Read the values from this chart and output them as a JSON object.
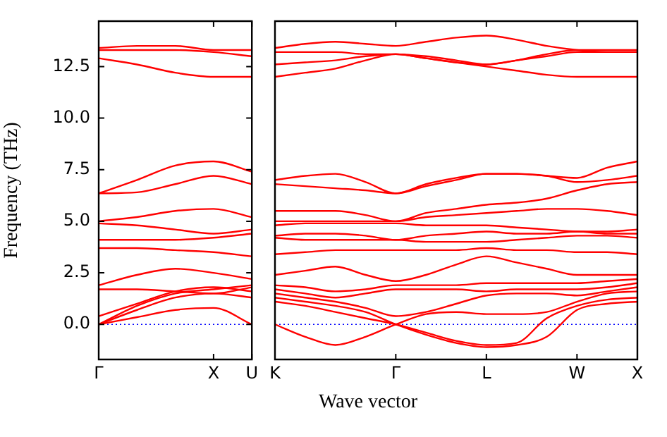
{
  "chart_data": [
    {
      "type": "line",
      "ylabel": "Frequency (THz)",
      "ylim": [
        -1.7,
        14.7
      ],
      "categories": [
        "Γ",
        null,
        null,
        "X",
        "U"
      ],
      "yticks": [
        {
          "value": 0,
          "label": "0.0"
        },
        {
          "value": 2.5,
          "label": "2.5"
        },
        {
          "value": 5,
          "label": "5.0"
        },
        {
          "value": 7.5,
          "label": "7.5"
        },
        {
          "value": 10,
          "label": "10.0"
        },
        {
          "value": 12.5,
          "label": "12.5"
        }
      ],
      "grid": false,
      "legend": false,
      "marker": "none",
      "line_style": "solid",
      "ref_lines": [
        {
          "axis": "y",
          "value": 0,
          "color": "#0000ff",
          "line_style": "dotted"
        }
      ],
      "series": [
        {
          "color": "#ff0000",
          "values": [
            0,
            0.35,
            0.7,
            0.8,
            0
          ]
        },
        {
          "color": "#ff0000",
          "values": [
            0,
            0.7,
            1.3,
            1.5,
            1.3
          ]
        },
        {
          "color": "#ff0000",
          "values": [
            0,
            0.9,
            1.5,
            1.7,
            1.9
          ]
        },
        {
          "color": "#ff0000",
          "values": [
            0.4,
            1.0,
            1.6,
            1.8,
            1.6
          ]
        },
        {
          "color": "#ff0000",
          "values": [
            1.7,
            1.7,
            1.6,
            1.5,
            1.8
          ]
        },
        {
          "color": "#ff0000",
          "values": [
            1.9,
            2.4,
            2.7,
            2.5,
            2.2
          ]
        },
        {
          "color": "#ff0000",
          "values": [
            3.7,
            3.7,
            3.6,
            3.5,
            3.3
          ]
        },
        {
          "color": "#ff0000",
          "values": [
            4.1,
            4.1,
            4.1,
            4.2,
            4.4
          ]
        },
        {
          "color": "#ff0000",
          "values": [
            4.9,
            4.8,
            4.6,
            4.4,
            4.6
          ]
        },
        {
          "color": "#ff0000",
          "values": [
            5.0,
            5.2,
            5.5,
            5.6,
            5.2
          ]
        },
        {
          "color": "#ff0000",
          "values": [
            6.35,
            6.4,
            6.8,
            7.2,
            6.8
          ]
        },
        {
          "color": "#ff0000",
          "values": [
            6.35,
            7.0,
            7.7,
            7.9,
            7.4
          ]
        },
        {
          "color": "#ff0000",
          "values": [
            12.9,
            12.6,
            12.2,
            12.0,
            12.0
          ]
        },
        {
          "color": "#ff0000",
          "values": [
            13.3,
            13.3,
            13.3,
            13.2,
            13.0
          ]
        },
        {
          "color": "#ff0000",
          "values": [
            13.4,
            13.5,
            13.5,
            13.3,
            13.3
          ]
        }
      ]
    },
    {
      "type": "line",
      "xlabel": "Wave vector",
      "ylim": [
        -1.7,
        14.7
      ],
      "tick_labels": "x",
      "categories": [
        "K",
        null,
        null,
        null,
        "Γ",
        null,
        null,
        "L",
        null,
        null,
        "W",
        null,
        "X"
      ],
      "grid": false,
      "legend": false,
      "marker": "none",
      "line_style": "solid",
      "ref_lines": [
        {
          "axis": "y",
          "value": 0,
          "color": "#0000ff",
          "line_style": "dotted"
        }
      ],
      "series": [
        {
          "color": "#ff0000",
          "values": [
            0,
            -0.6,
            -1.0,
            -0.6,
            0,
            0.5,
            0.6,
            0.5,
            0.5,
            0.6,
            1.1,
            1.5,
            1.6
          ]
        },
        {
          "color": "#ff0000",
          "values": [
            1.1,
            0.9,
            0.6,
            0.3,
            0,
            -0.4,
            -0.8,
            -1.0,
            -0.9,
            0.3,
            0.9,
            1.2,
            1.3
          ]
        },
        {
          "color": "#ff0000",
          "values": [
            1.3,
            1.1,
            0.9,
            0.6,
            0,
            -0.5,
            -0.9,
            -1.1,
            -1.0,
            -0.6,
            0.7,
            1.0,
            1.1
          ]
        },
        {
          "color": "#ff0000",
          "values": [
            1.5,
            1.3,
            1.1,
            0.8,
            0.4,
            0.6,
            1.0,
            1.4,
            1.5,
            1.5,
            1.4,
            1.6,
            1.8
          ]
        },
        {
          "color": "#ff0000",
          "values": [
            1.7,
            1.5,
            1.3,
            1.5,
            1.7,
            1.7,
            1.7,
            1.6,
            1.7,
            1.7,
            1.7,
            1.8,
            2.0
          ]
        },
        {
          "color": "#ff0000",
          "values": [
            1.9,
            1.8,
            1.6,
            1.7,
            1.9,
            1.9,
            1.9,
            2.0,
            2.0,
            2.0,
            2.0,
            2.1,
            2.2
          ]
        },
        {
          "color": "#ff0000",
          "values": [
            2.4,
            2.6,
            2.8,
            2.4,
            2.1,
            2.4,
            2.9,
            3.3,
            3.0,
            2.7,
            2.4,
            2.4,
            2.4
          ]
        },
        {
          "color": "#ff0000",
          "values": [
            3.4,
            3.5,
            3.6,
            3.6,
            3.6,
            3.6,
            3.6,
            3.7,
            3.6,
            3.6,
            3.5,
            3.5,
            3.4
          ]
        },
        {
          "color": "#ff0000",
          "values": [
            4.2,
            4.1,
            4.1,
            4.1,
            4.1,
            4.0,
            4.0,
            4.0,
            4.1,
            4.2,
            4.3,
            4.3,
            4.2
          ]
        },
        {
          "color": "#ff0000",
          "values": [
            4.3,
            4.4,
            4.4,
            4.3,
            4.1,
            4.3,
            4.4,
            4.5,
            4.4,
            4.4,
            4.5,
            4.4,
            4.4
          ]
        },
        {
          "color": "#ff0000",
          "values": [
            4.8,
            4.9,
            4.9,
            4.9,
            4.9,
            4.8,
            4.8,
            4.8,
            4.7,
            4.6,
            4.5,
            4.5,
            4.6
          ]
        },
        {
          "color": "#ff0000",
          "values": [
            5.0,
            5.0,
            5.0,
            5.0,
            5.0,
            5.2,
            5.3,
            5.4,
            5.5,
            5.6,
            5.6,
            5.5,
            5.3
          ]
        },
        {
          "color": "#ff0000",
          "values": [
            5.5,
            5.5,
            5.5,
            5.3,
            5.0,
            5.4,
            5.6,
            5.8,
            5.9,
            6.1,
            6.5,
            6.8,
            6.9
          ]
        },
        {
          "color": "#ff0000",
          "values": [
            6.8,
            6.7,
            6.6,
            6.5,
            6.35,
            6.7,
            7.0,
            7.3,
            7.3,
            7.2,
            6.9,
            7.0,
            7.2
          ]
        },
        {
          "color": "#ff0000",
          "values": [
            7.0,
            7.2,
            7.3,
            6.9,
            6.35,
            6.8,
            7.1,
            7.3,
            7.3,
            7.2,
            7.1,
            7.6,
            7.9
          ]
        },
        {
          "color": "#ff0000",
          "values": [
            12.0,
            12.2,
            12.4,
            12.8,
            13.1,
            12.9,
            12.7,
            12.5,
            12.3,
            12.1,
            12.0,
            12.0,
            12.0
          ]
        },
        {
          "color": "#ff0000",
          "values": [
            12.6,
            12.7,
            12.8,
            13.0,
            13.1,
            12.9,
            12.7,
            12.6,
            12.8,
            13.0,
            13.2,
            13.2,
            13.2
          ]
        },
        {
          "color": "#ff0000",
          "values": [
            13.2,
            13.2,
            13.2,
            13.1,
            13.1,
            13.0,
            12.8,
            12.6,
            12.8,
            13.1,
            13.3,
            13.3,
            13.3
          ]
        },
        {
          "color": "#ff0000",
          "values": [
            13.4,
            13.6,
            13.7,
            13.6,
            13.5,
            13.7,
            13.9,
            14.0,
            13.8,
            13.5,
            13.3,
            13.2,
            13.2
          ]
        }
      ]
    }
  ]
}
